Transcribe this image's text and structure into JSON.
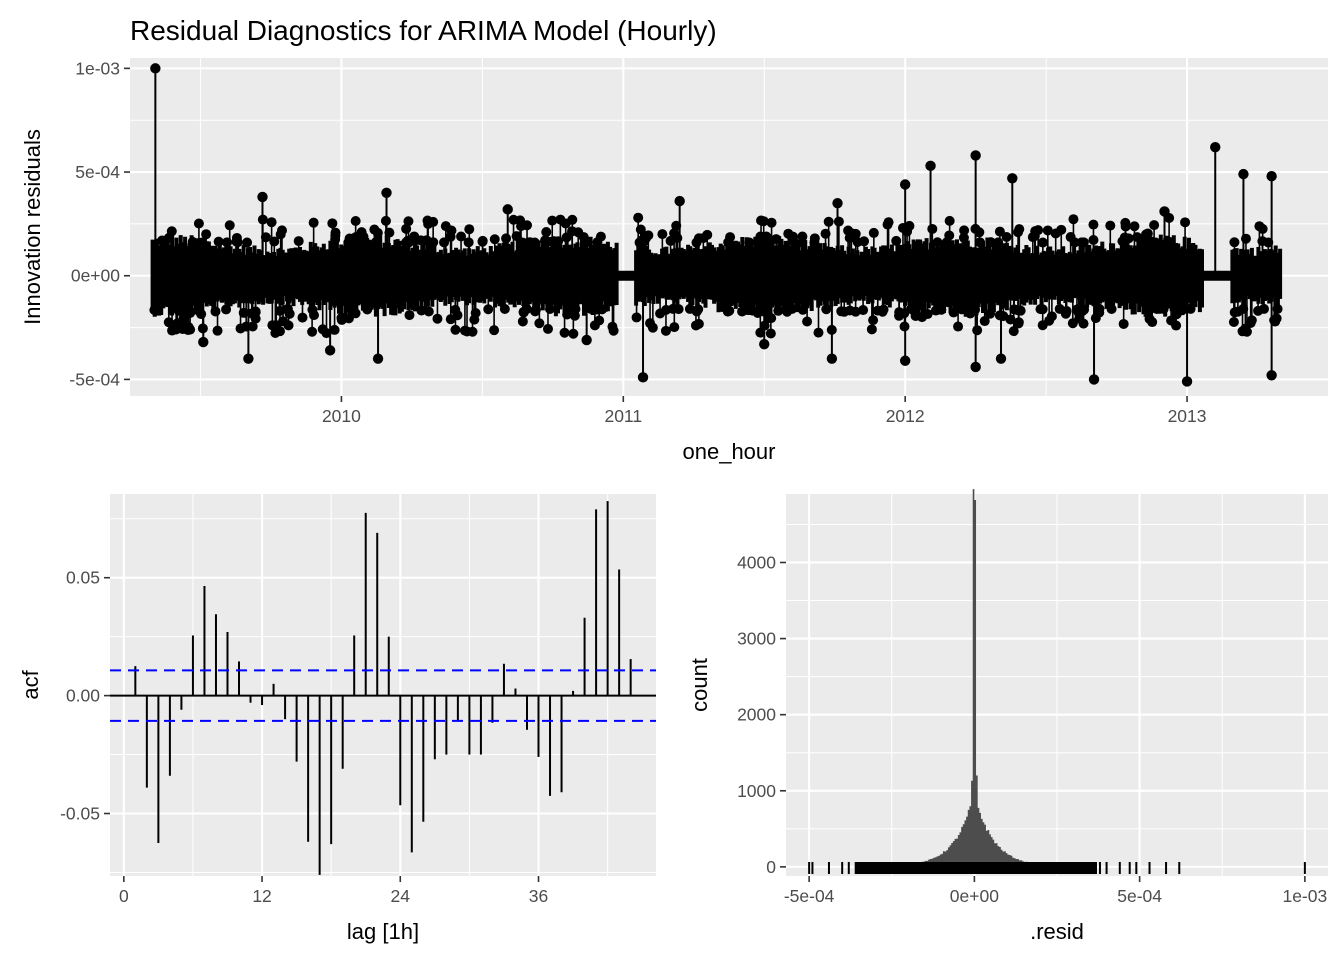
{
  "title": "Residual Diagnostics for ARIMA Model (Hourly)",
  "colors": {
    "panel": "#ebebeb",
    "grid": "#ffffff",
    "marks": "#000000",
    "hist": "#4d4d4d",
    "ci": "#0000ff"
  },
  "chart_data": [
    {
      "type": "line",
      "panel": "time-series",
      "xlabel": "one_hour",
      "ylabel": "Innovation residuals",
      "xlim": [
        2009.25,
        2013.5
      ],
      "ylim": [
        -0.00058,
        0.00105
      ],
      "x_ticks": [
        2010,
        2011,
        2012,
        2013
      ],
      "x_tick_labels": [
        "2010",
        "2011",
        "2012",
        "2013"
      ],
      "y_ticks": [
        -0.0005,
        0,
        0.0005,
        0.001
      ],
      "y_tick_labels": [
        "-5e-04",
        "0e+00",
        "5e-04",
        "1e-03"
      ],
      "start": 2009.33,
      "end": 2013.33,
      "gaps": [
        [
          2010.98,
          2011.04
        ],
        [
          2013.06,
          2013.16
        ]
      ],
      "spikes": [
        {
          "x": 2009.34,
          "y": 0.001
        },
        {
          "x": 2009.51,
          "y": -0.00032
        },
        {
          "x": 2009.67,
          "y": -0.0004
        },
        {
          "x": 2009.72,
          "y": 0.00038
        },
        {
          "x": 2009.96,
          "y": -0.00036
        },
        {
          "x": 2010.13,
          "y": -0.0004
        },
        {
          "x": 2010.16,
          "y": 0.0004
        },
        {
          "x": 2010.59,
          "y": 0.00032
        },
        {
          "x": 2010.87,
          "y": -0.00031
        },
        {
          "x": 2011.07,
          "y": -0.00049
        },
        {
          "x": 2011.2,
          "y": 0.00036
        },
        {
          "x": 2011.5,
          "y": -0.00033
        },
        {
          "x": 2011.74,
          "y": -0.0004
        },
        {
          "x": 2011.76,
          "y": 0.00035
        },
        {
          "x": 2012.0,
          "y": 0.00044
        },
        {
          "x": 2012.0,
          "y": -0.00041
        },
        {
          "x": 2012.09,
          "y": 0.00053
        },
        {
          "x": 2012.25,
          "y": 0.00058
        },
        {
          "x": 2012.25,
          "y": -0.00044
        },
        {
          "x": 2012.34,
          "y": -0.0004
        },
        {
          "x": 2012.38,
          "y": 0.00047
        },
        {
          "x": 2012.67,
          "y": -0.0005
        },
        {
          "x": 2012.92,
          "y": 0.00031
        },
        {
          "x": 2013.0,
          "y": -0.00051
        },
        {
          "x": 2013.1,
          "y": 0.00062
        },
        {
          "x": 2013.2,
          "y": 0.00049
        },
        {
          "x": 2013.3,
          "y": 0.00048
        },
        {
          "x": 2013.3,
          "y": -0.00048
        }
      ]
    },
    {
      "type": "bar",
      "panel": "acf",
      "xlabel": "lag [1h]",
      "ylabel": "acf",
      "xlim": [
        -1.2,
        46.2
      ],
      "ylim": [
        -0.0765,
        0.0855
      ],
      "x_ticks": [
        0,
        12,
        24,
        36
      ],
      "x_tick_labels": [
        "0",
        "12",
        "24",
        "36"
      ],
      "y_ticks": [
        -0.05,
        0,
        0.05
      ],
      "y_tick_labels": [
        "-0.05",
        "0.00",
        "0.05"
      ],
      "ci": 0.0107,
      "lags": [
        1,
        2,
        3,
        4,
        5,
        6,
        7,
        8,
        9,
        10,
        11,
        12,
        13,
        14,
        15,
        16,
        17,
        18,
        19,
        20,
        21,
        22,
        23,
        24,
        25,
        26,
        27,
        28,
        29,
        30,
        31,
        32,
        33,
        34,
        35,
        36,
        37,
        38,
        39,
        40,
        41,
        42,
        43,
        44,
        45
      ],
      "values": [
        0.0125,
        -0.039,
        -0.0625,
        -0.034,
        -0.006,
        0.0255,
        0.0465,
        0.0345,
        0.027,
        0.0145,
        -0.003,
        -0.004,
        0.005,
        -0.01,
        -0.028,
        -0.062,
        -0.076,
        -0.063,
        -0.031,
        0.0255,
        0.0775,
        0.069,
        0.025,
        -0.0465,
        -0.0665,
        -0.0535,
        -0.027,
        -0.025,
        -0.011,
        -0.025,
        -0.025,
        -0.0115,
        0.0135,
        0.003,
        -0.0145,
        -0.026,
        -0.0425,
        -0.041,
        0.002,
        0.033,
        0.079,
        0.0825,
        0.0535,
        0.0155,
        0.0
      ]
    },
    {
      "type": "histogram",
      "panel": "histogram",
      "xlabel": ".resid",
      "ylabel": "count",
      "xlim": [
        -0.00057,
        0.00107
      ],
      "ylim": [
        -120,
        4900
      ],
      "x_ticks": [
        -0.0005,
        0,
        0.0005,
        0.001
      ],
      "x_tick_labels": [
        "-5e-04",
        "0e+00",
        "5e-04",
        "1e-03"
      ],
      "y_ticks": [
        0,
        1000,
        2000,
        3000,
        4000
      ],
      "y_tick_labels": [
        "0",
        "1000",
        "2000",
        "3000",
        "4000"
      ],
      "peak_x": 0.0,
      "peak_count": 4700,
      "rug_dense_range": [
        -0.00036,
        0.00037
      ],
      "rug_outliers": [
        -0.0005,
        -0.00049,
        -0.00044,
        -0.0004,
        -0.00038,
        0.00038,
        0.0004,
        0.00044,
        0.00047,
        0.00049,
        0.00053,
        0.00058,
        0.00062,
        0.001
      ]
    }
  ]
}
